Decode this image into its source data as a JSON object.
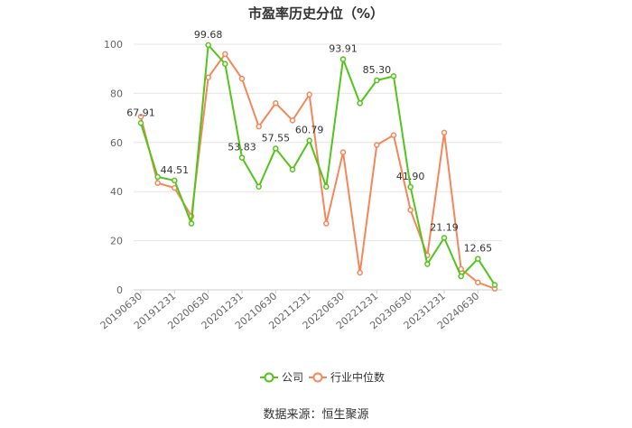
{
  "title": "市盈率历史分位（%）",
  "source": "数据来源：恒生聚源",
  "chart_data": {
    "type": "line",
    "title": "市盈率历史分位（%）",
    "ylim": [
      0,
      100
    ],
    "yticks": [
      0,
      20,
      40,
      60,
      80,
      100
    ],
    "grid": true,
    "legend_position": "bottom",
    "x": [
      "20190630",
      "20190930",
      "20191231",
      "20200331",
      "20200630",
      "20200930",
      "20201231",
      "20210331",
      "20210630",
      "20210930",
      "20211231",
      "20220331",
      "20220630",
      "20220930",
      "20221231",
      "20230331",
      "20230630",
      "20230930",
      "20231231",
      "20240331",
      "20240630",
      "20240930"
    ],
    "xtick_labels": [
      "20190630",
      "20191231",
      "20200630",
      "20201231",
      "20210630",
      "20211231",
      "20220630",
      "20221231",
      "20230630",
      "20231231",
      "20240630"
    ],
    "series": [
      {
        "name": "公司",
        "color": "#52c41a",
        "values": [
          67.91,
          46,
          44.51,
          27,
          99.68,
          92,
          53.83,
          42,
          57.55,
          49,
          60.79,
          42,
          93.91,
          76,
          85.3,
          87,
          41.9,
          10.5,
          21.19,
          5.5,
          12.65,
          2
        ]
      },
      {
        "name": "行业中位数",
        "color": "#f4875a",
        "values": [
          70.5,
          43.5,
          41.5,
          30,
          86.5,
          96,
          86,
          66.5,
          76,
          69,
          79.5,
          27,
          56,
          7,
          59,
          63,
          32.5,
          14,
          64,
          8.5,
          3,
          0.5
        ]
      }
    ],
    "data_labels": [
      {
        "index": 0,
        "text": "67.91"
      },
      {
        "index": 2,
        "text": "44.51"
      },
      {
        "index": 4,
        "text": "99.68"
      },
      {
        "index": 6,
        "text": "53.83"
      },
      {
        "index": 8,
        "text": "57.55"
      },
      {
        "index": 10,
        "text": "60.79"
      },
      {
        "index": 12,
        "text": "93.91"
      },
      {
        "index": 14,
        "text": "85.30"
      },
      {
        "index": 16,
        "text": "41.90"
      },
      {
        "index": 18,
        "text": "21.19"
      },
      {
        "index": 20,
        "text": "12.65"
      }
    ]
  }
}
